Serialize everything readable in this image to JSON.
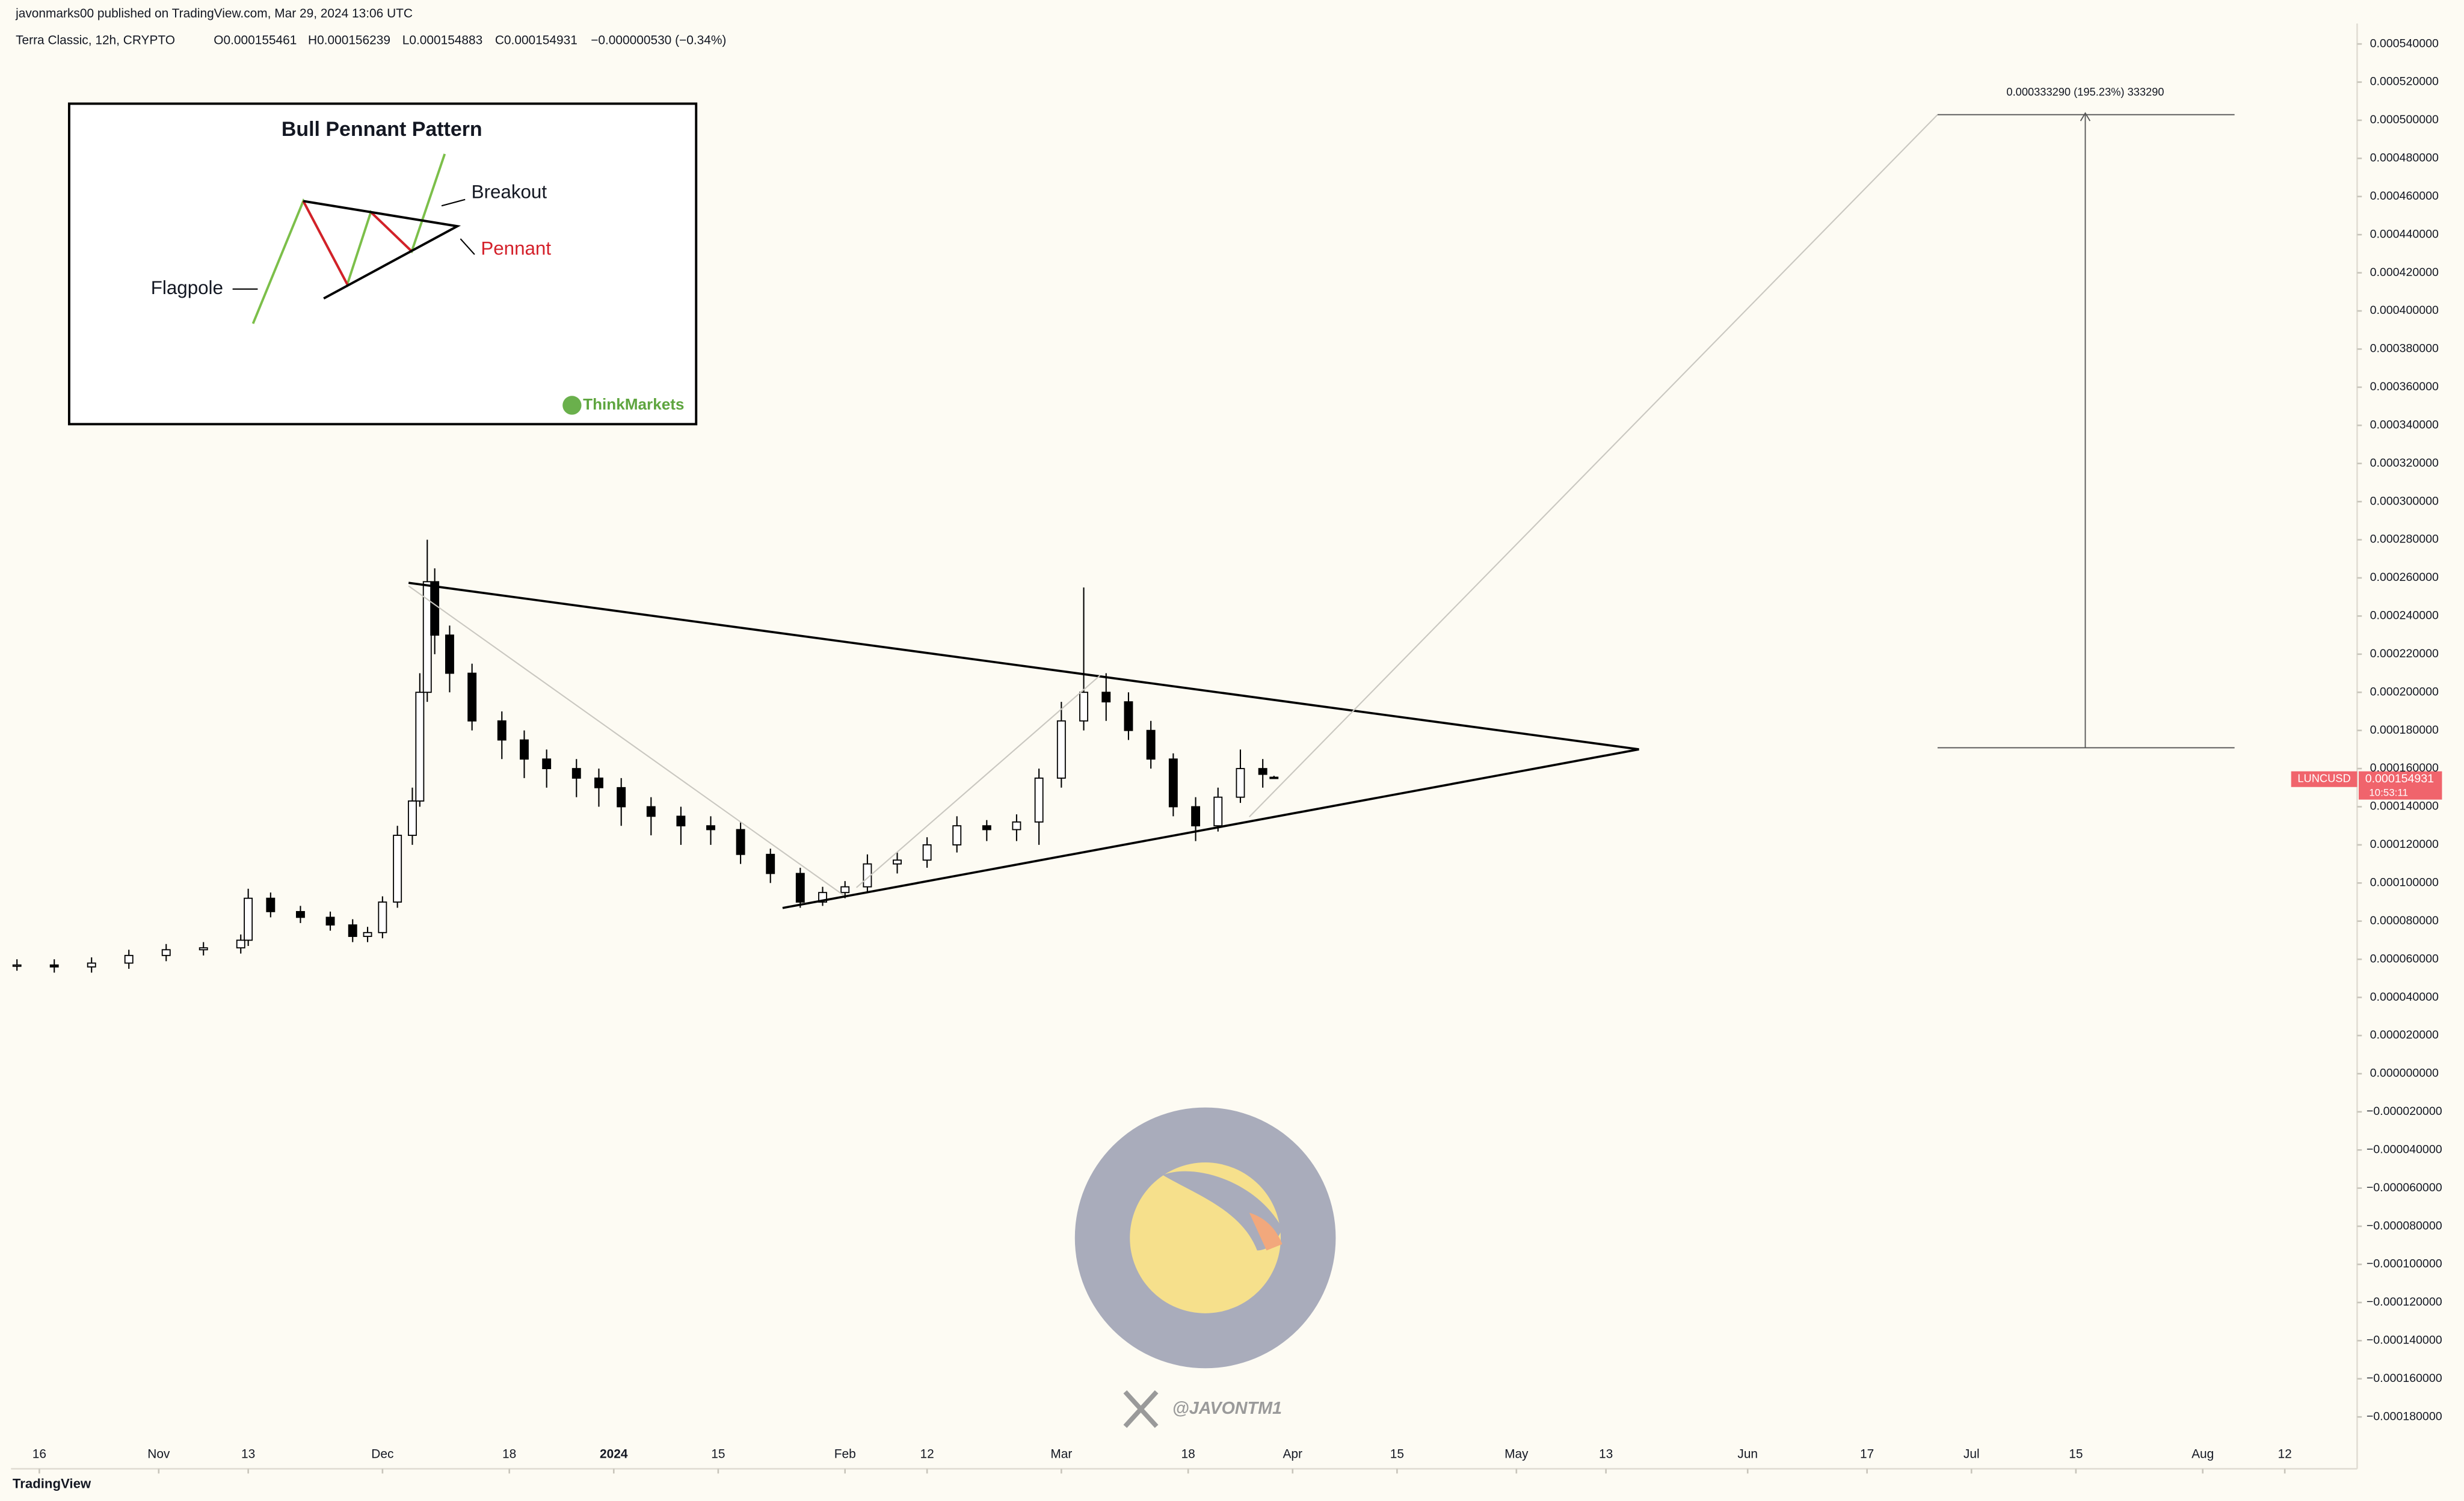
{
  "chart_data": {
    "type": "candlestick",
    "x": [
      -3,
      2,
      7,
      12,
      17,
      22,
      27,
      28,
      31,
      35,
      39,
      42,
      44,
      46,
      48,
      50,
      51,
      52,
      53,
      55,
      58,
      62,
      65,
      68,
      72,
      75,
      78,
      82,
      86,
      90,
      94,
      98,
      102,
      105,
      108,
      111,
      115,
      119,
      123,
      127,
      131,
      134,
      137,
      140,
      143,
      146,
      149,
      152,
      155,
      158,
      161,
      164,
      165.5
    ],
    "open": [
      5.7e-05,
      5.7e-05,
      5.6e-05,
      5.8e-05,
      6.2e-05,
      6.5e-05,
      6.6e-05,
      7e-05,
      9.2e-05,
      8.5e-05,
      8.2e-05,
      7.8e-05,
      7.2e-05,
      7.4e-05,
      9e-05,
      0.000125,
      0.000143,
      0.0002,
      0.000258,
      0.00023,
      0.00021,
      0.000185,
      0.000175,
      0.000165,
      0.00016,
      0.000155,
      0.00015,
      0.00014,
      0.000135,
      0.00013,
      0.000128,
      0.000115,
      0.000105,
      9e-05,
      9.5e-05,
      9.8e-05,
      0.00011,
      0.000112,
      0.00012,
      0.00013,
      0.000128,
      0.000132,
      0.000155,
      0.000185,
      0.0002,
      0.000195,
      0.00018,
      0.000165,
      0.00014,
      0.00013,
      0.000145,
      0.00016,
      0.000155461
    ],
    "high": [
      6e-05,
      6e-05,
      6.1e-05,
      6.5e-05,
      6.8e-05,
      6.9e-05,
      7.3e-05,
      9.7e-05,
      9.5e-05,
      8.8e-05,
      8.5e-05,
      8.1e-05,
      7.7e-05,
      9.3e-05,
      0.00013,
      0.00015,
      0.00021,
      0.00028,
      0.000265,
      0.000235,
      0.000215,
      0.00019,
      0.00018,
      0.00017,
      0.000165,
      0.00016,
      0.000155,
      0.000145,
      0.00014,
      0.000135,
      0.000132,
      0.000118,
      0.000108,
      9.8e-05,
      0.000101,
      0.000115,
      0.000116,
      0.000124,
      0.000135,
      0.000133,
      0.000136,
      0.00016,
      0.000195,
      0.000255,
      0.00021,
      0.0002,
      0.000185,
      0.000168,
      0.000145,
      0.00015,
      0.00017,
      0.000165,
      0.000156239
    ],
    "low": [
      5.4e-05,
      5.3e-05,
      5.3e-05,
      5.5e-05,
      5.9e-05,
      6.2e-05,
      6.3e-05,
      6.7e-05,
      8.2e-05,
      7.9e-05,
      7.5e-05,
      6.9e-05,
      6.9e-05,
      7.1e-05,
      8.7e-05,
      0.00012,
      0.00014,
      0.000195,
      0.00022,
      0.0002,
      0.00018,
      0.000165,
      0.000155,
      0.00015,
      0.000145,
      0.00014,
      0.00013,
      0.000125,
      0.00012,
      0.00012,
      0.00011,
      0.0001,
      8.7e-05,
      8.8e-05,
      9.2e-05,
      9.5e-05,
      0.000105,
      0.000108,
      0.000116,
      0.000122,
      0.000122,
      0.00012,
      0.00015,
      0.00018,
      0.000185,
      0.000175,
      0.00016,
      0.000135,
      0.000122,
      0.000127,
      0.000142,
      0.00015,
      0.000154883
    ],
    "close": [
      5.7e-05,
      5.6e-05,
      5.8e-05,
      6.2e-05,
      6.5e-05,
      6.6e-05,
      7e-05,
      9.2e-05,
      8.5e-05,
      8.2e-05,
      7.8e-05,
      7.2e-05,
      7.4e-05,
      9e-05,
      0.000125,
      0.000143,
      0.0002,
      0.000258,
      0.00023,
      0.00021,
      0.000185,
      0.000175,
      0.000165,
      0.00016,
      0.000155,
      0.00015,
      0.00014,
      0.000135,
      0.00013,
      0.000128,
      0.000115,
      0.000105,
      9e-05,
      9.5e-05,
      9.8e-05,
      0.00011,
      0.000112,
      0.00012,
      0.00013,
      0.000128,
      0.000132,
      0.000155,
      0.000185,
      0.0002,
      0.000195,
      0.00018,
      0.000165,
      0.00014,
      0.00013,
      0.000145,
      0.00016,
      0.000157,
      0.000154931
    ],
    "up_color": "#ffffff",
    "down_color": "#000000",
    "xlim": [
      -3.8,
      310.7
    ],
    "xticks": [
      {
        "value": 0,
        "label": "16"
      },
      {
        "value": 16,
        "label": "Nov"
      },
      {
        "value": 28,
        "label": "13"
      },
      {
        "value": 46,
        "label": "Dec"
      },
      {
        "value": 63,
        "label": "18"
      },
      {
        "value": 77,
        "label": "2024"
      },
      {
        "value": 91,
        "label": "15"
      },
      {
        "value": 108,
        "label": "Feb"
      },
      {
        "value": 119,
        "label": "12"
      },
      {
        "value": 137,
        "label": "Mar"
      },
      {
        "value": 154,
        "label": "18"
      },
      {
        "value": 168,
        "label": "Apr"
      },
      {
        "value": 182,
        "label": "15"
      },
      {
        "value": 198,
        "label": "May"
      },
      {
        "value": 210,
        "label": "13"
      },
      {
        "value": 229,
        "label": "Jun"
      },
      {
        "value": 245,
        "label": "17"
      },
      {
        "value": 259,
        "label": "Jul"
      },
      {
        "value": 273,
        "label": "15"
      },
      {
        "value": 290,
        "label": "Aug"
      },
      {
        "value": 301,
        "label": "12"
      }
    ],
    "ylim": [
      -0.0002072,
      0.0005507
    ],
    "yticks": [
      {
        "value": 0.00054,
        "label": "0.000540000"
      },
      {
        "value": 0.00052,
        "label": "0.000520000"
      },
      {
        "value": 0.0005,
        "label": "0.000500000"
      },
      {
        "value": 0.00048,
        "label": "0.000480000"
      },
      {
        "value": 0.00046,
        "label": "0.000460000"
      },
      {
        "value": 0.00044,
        "label": "0.000440000"
      },
      {
        "value": 0.00042,
        "label": "0.000420000"
      },
      {
        "value": 0.0004,
        "label": "0.000400000"
      },
      {
        "value": 0.00038,
        "label": "0.000380000"
      },
      {
        "value": 0.00036,
        "label": "0.000360000"
      },
      {
        "value": 0.00034,
        "label": "0.000340000"
      },
      {
        "value": 0.00032,
        "label": "0.000320000"
      },
      {
        "value": 0.0003,
        "label": "0.000300000"
      },
      {
        "value": 0.00028,
        "label": "0.000280000"
      },
      {
        "value": 0.00026,
        "label": "0.000260000"
      },
      {
        "value": 0.00024,
        "label": "0.000240000"
      },
      {
        "value": 0.00022,
        "label": "0.000220000"
      },
      {
        "value": 0.0002,
        "label": "0.000200000"
      },
      {
        "value": 0.00018,
        "label": "0.000180000"
      },
      {
        "value": 0.00016,
        "label": "0.000160000"
      },
      {
        "value": 0.00014,
        "label": "0.000140000"
      },
      {
        "value": 0.00012,
        "label": "0.000120000"
      },
      {
        "value": 0.0001,
        "label": "0.000100000"
      },
      {
        "value": 8e-05,
        "label": "0.000080000"
      },
      {
        "value": 6e-05,
        "label": "0.000060000"
      },
      {
        "value": 4e-05,
        "label": "0.000040000"
      },
      {
        "value": 2e-05,
        "label": "0.000020000"
      },
      {
        "value": 0,
        "label": "0.000000000"
      },
      {
        "value": -2e-05,
        "label": "−0.000020000"
      },
      {
        "value": -4e-05,
        "label": "−0.000040000"
      },
      {
        "value": -6e-05,
        "label": "−0.000060000"
      },
      {
        "value": -8e-05,
        "label": "−0.000080000"
      },
      {
        "value": -0.0001,
        "label": "−0.000100000"
      },
      {
        "value": -0.00012,
        "label": "−0.000120000"
      },
      {
        "value": -0.00014,
        "label": "−0.000140000"
      },
      {
        "value": -0.00016,
        "label": "−0.000160000"
      },
      {
        "value": -0.00018,
        "label": "−0.000180000"
      }
    ],
    "grid": false
  },
  "header": {
    "published": "javonmarks00 published on TradingView.com, Mar 29, 2024 13:06 UTC",
    "symbol": "Terra Classic, 12h, CRYPTO",
    "o": "O0.000155461",
    "h": "H0.000156239",
    "l": "L0.000154883",
    "c": "C0.000154931",
    "change": "−0.000000530 (−0.34%)"
  },
  "measure_label": "0.000333290 (195.23%) 333290",
  "price_label": {
    "symbol": "LUNCUSD",
    "price": "0.000154931",
    "countdown": "10:53:11"
  },
  "inset": {
    "title": "Bull Pennant Pattern",
    "breakout": "Breakout",
    "pennant": "Pennant",
    "flagpole": "Flagpole",
    "brand": "ThinkMarkets"
  },
  "watermark": "@JAVONTM1",
  "branding": "TradingView"
}
